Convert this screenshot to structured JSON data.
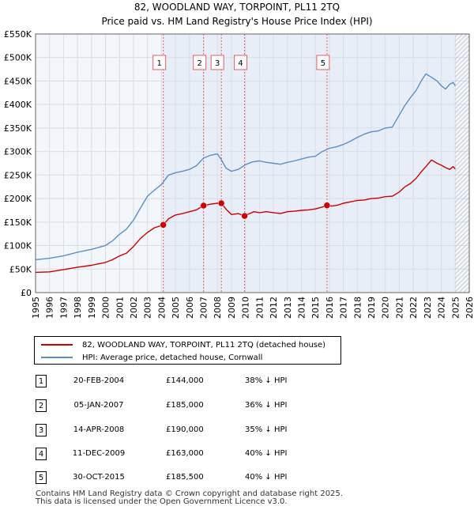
{
  "title": "82, WOODLAND WAY, TORPOINT, PL11 2TQ",
  "subtitle": "Price paid vs. HM Land Registry's House Price Index (HPI)",
  "chart_data": {
    "type": "line",
    "xlim": [
      1995,
      2026
    ],
    "ylim": [
      0,
      550000
    ],
    "ytick_values": [
      0,
      50000,
      100000,
      150000,
      200000,
      250000,
      300000,
      350000,
      400000,
      450000,
      500000,
      550000
    ],
    "ytick_labels": [
      "£0",
      "£50K",
      "£100K",
      "£150K",
      "£200K",
      "£250K",
      "£300K",
      "£350K",
      "£400K",
      "£450K",
      "£500K",
      "£550K"
    ],
    "xtick_labels": [
      "1995",
      "1996",
      "1997",
      "1998",
      "1999",
      "2000",
      "2001",
      "2002",
      "2003",
      "2004",
      "2005",
      "2006",
      "2007",
      "2008",
      "2009",
      "2010",
      "2011",
      "2012",
      "2013",
      "2014",
      "2015",
      "2016",
      "2017",
      "2018",
      "2019",
      "2020",
      "2021",
      "2022",
      "2023",
      "2024",
      "2025",
      "2026"
    ],
    "future_start": 2025.0,
    "series": [
      {
        "name": "82, WOODLAND WAY, TORPOINT, PL11 2TQ (detached house)",
        "color": "#cc0000",
        "x": [
          1995.0,
          1996.0,
          1997.0,
          1998.0,
          1999.0,
          2000.0,
          2000.5,
          2001.0,
          2001.5,
          2002.0,
          2002.5,
          2003.0,
          2003.5,
          2004.13,
          2004.5,
          2005.0,
          2005.5,
          2006.0,
          2006.5,
          2007.01,
          2007.5,
          2008.0,
          2008.28,
          2008.6,
          2009.0,
          2009.5,
          2009.94,
          2010.3,
          2010.6,
          2011.0,
          2011.5,
          2012.0,
          2012.5,
          2013.0,
          2013.5,
          2014.0,
          2014.5,
          2015.0,
          2015.5,
          2015.83,
          2016.2,
          2016.6,
          2017.0,
          2017.5,
          2018.0,
          2018.5,
          2019.0,
          2019.5,
          2020.0,
          2020.5,
          2021.0,
          2021.4,
          2021.8,
          2022.2,
          2022.6,
          2022.9,
          2023.3,
          2023.7,
          2024.0,
          2024.3,
          2024.6,
          2024.85,
          2025.0
        ],
        "values": [
          43000,
          44000,
          49000,
          54000,
          58000,
          64000,
          70000,
          78000,
          84000,
          98000,
          115000,
          128000,
          138000,
          144000,
          157000,
          165000,
          168000,
          172000,
          176000,
          185000,
          188000,
          190000,
          190000,
          178000,
          166000,
          168000,
          163000,
          168000,
          172000,
          170000,
          172000,
          170000,
          168000,
          172000,
          173000,
          175000,
          176000,
          178000,
          182000,
          185500,
          184000,
          186000,
          190000,
          193000,
          196000,
          197000,
          200000,
          201000,
          204000,
          205000,
          214000,
          225000,
          232000,
          243000,
          258000,
          268000,
          282000,
          275000,
          271000,
          266000,
          262000,
          268000,
          263000
        ]
      },
      {
        "name": "HPI: Average price, detached house, Cornwall",
        "color": "#5b8fc8",
        "x": [
          1995.0,
          1996.0,
          1997.0,
          1998.0,
          1999.0,
          2000.0,
          2000.5,
          2001.0,
          2001.5,
          2002.0,
          2002.5,
          2003.0,
          2003.5,
          2004.0,
          2004.5,
          2005.0,
          2005.5,
          2006.0,
          2006.5,
          2007.0,
          2007.5,
          2008.0,
          2008.3,
          2008.6,
          2009.0,
          2009.5,
          2010.0,
          2010.5,
          2011.0,
          2011.5,
          2012.0,
          2012.5,
          2013.0,
          2013.5,
          2014.0,
          2014.5,
          2015.0,
          2015.5,
          2016.0,
          2016.5,
          2017.0,
          2017.5,
          2018.0,
          2018.5,
          2019.0,
          2019.5,
          2020.0,
          2020.5,
          2021.0,
          2021.4,
          2021.8,
          2022.2,
          2022.6,
          2022.9,
          2023.3,
          2023.7,
          2024.0,
          2024.3,
          2024.6,
          2024.85,
          2025.0
        ],
        "values": [
          70000,
          73000,
          78000,
          86000,
          92000,
          100000,
          110000,
          124000,
          135000,
          154000,
          180000,
          205000,
          218000,
          230000,
          250000,
          255000,
          258000,
          262000,
          270000,
          286000,
          292000,
          295000,
          282000,
          265000,
          258000,
          262000,
          272000,
          278000,
          280000,
          277000,
          275000,
          273000,
          277000,
          280000,
          284000,
          288000,
          290000,
          300000,
          307000,
          310000,
          315000,
          322000,
          330000,
          337000,
          342000,
          344000,
          350000,
          352000,
          378000,
          398000,
          415000,
          430000,
          452000,
          465000,
          458000,
          450000,
          440000,
          433000,
          443000,
          447000,
          440000
        ]
      }
    ],
    "sales": [
      {
        "label": "1",
        "x": 2004.13,
        "value": 144000
      },
      {
        "label": "2",
        "x": 2007.01,
        "value": 185000
      },
      {
        "label": "3",
        "x": 2008.28,
        "value": 190000
      },
      {
        "label": "4",
        "x": 2009.94,
        "value": 163000
      },
      {
        "label": "5",
        "x": 2015.83,
        "value": 185500
      }
    ]
  },
  "legend": {
    "property_label": "82, WOODLAND WAY, TORPOINT, PL11 2TQ (detached house)",
    "hpi_label": "HPI: Average price, detached house, Cornwall"
  },
  "sales_table": [
    {
      "num": "1",
      "date": "20-FEB-2004",
      "price": "£144,000",
      "hpi": "38% ↓ HPI"
    },
    {
      "num": "2",
      "date": "05-JAN-2007",
      "price": "£185,000",
      "hpi": "36% ↓ HPI"
    },
    {
      "num": "3",
      "date": "14-APR-2008",
      "price": "£190,000",
      "hpi": "35% ↓ HPI"
    },
    {
      "num": "4",
      "date": "11-DEC-2009",
      "price": "£163,000",
      "hpi": "40% ↓ HPI"
    },
    {
      "num": "5",
      "date": "30-OCT-2015",
      "price": "£185,500",
      "hpi": "40% ↓ HPI"
    }
  ],
  "footer": {
    "line1": "Contains HM Land Registry data © Crown copyright and database right 2025.",
    "line2": "This data is licensed under the Open Government Licence v3.0."
  },
  "colors": {
    "property": "#cc0000",
    "hpi": "#5b8fc8",
    "shade": "#e8eef8",
    "plot_bg": "#f3f6fb",
    "grid": "#d8dde6",
    "vline": "#e06060"
  }
}
